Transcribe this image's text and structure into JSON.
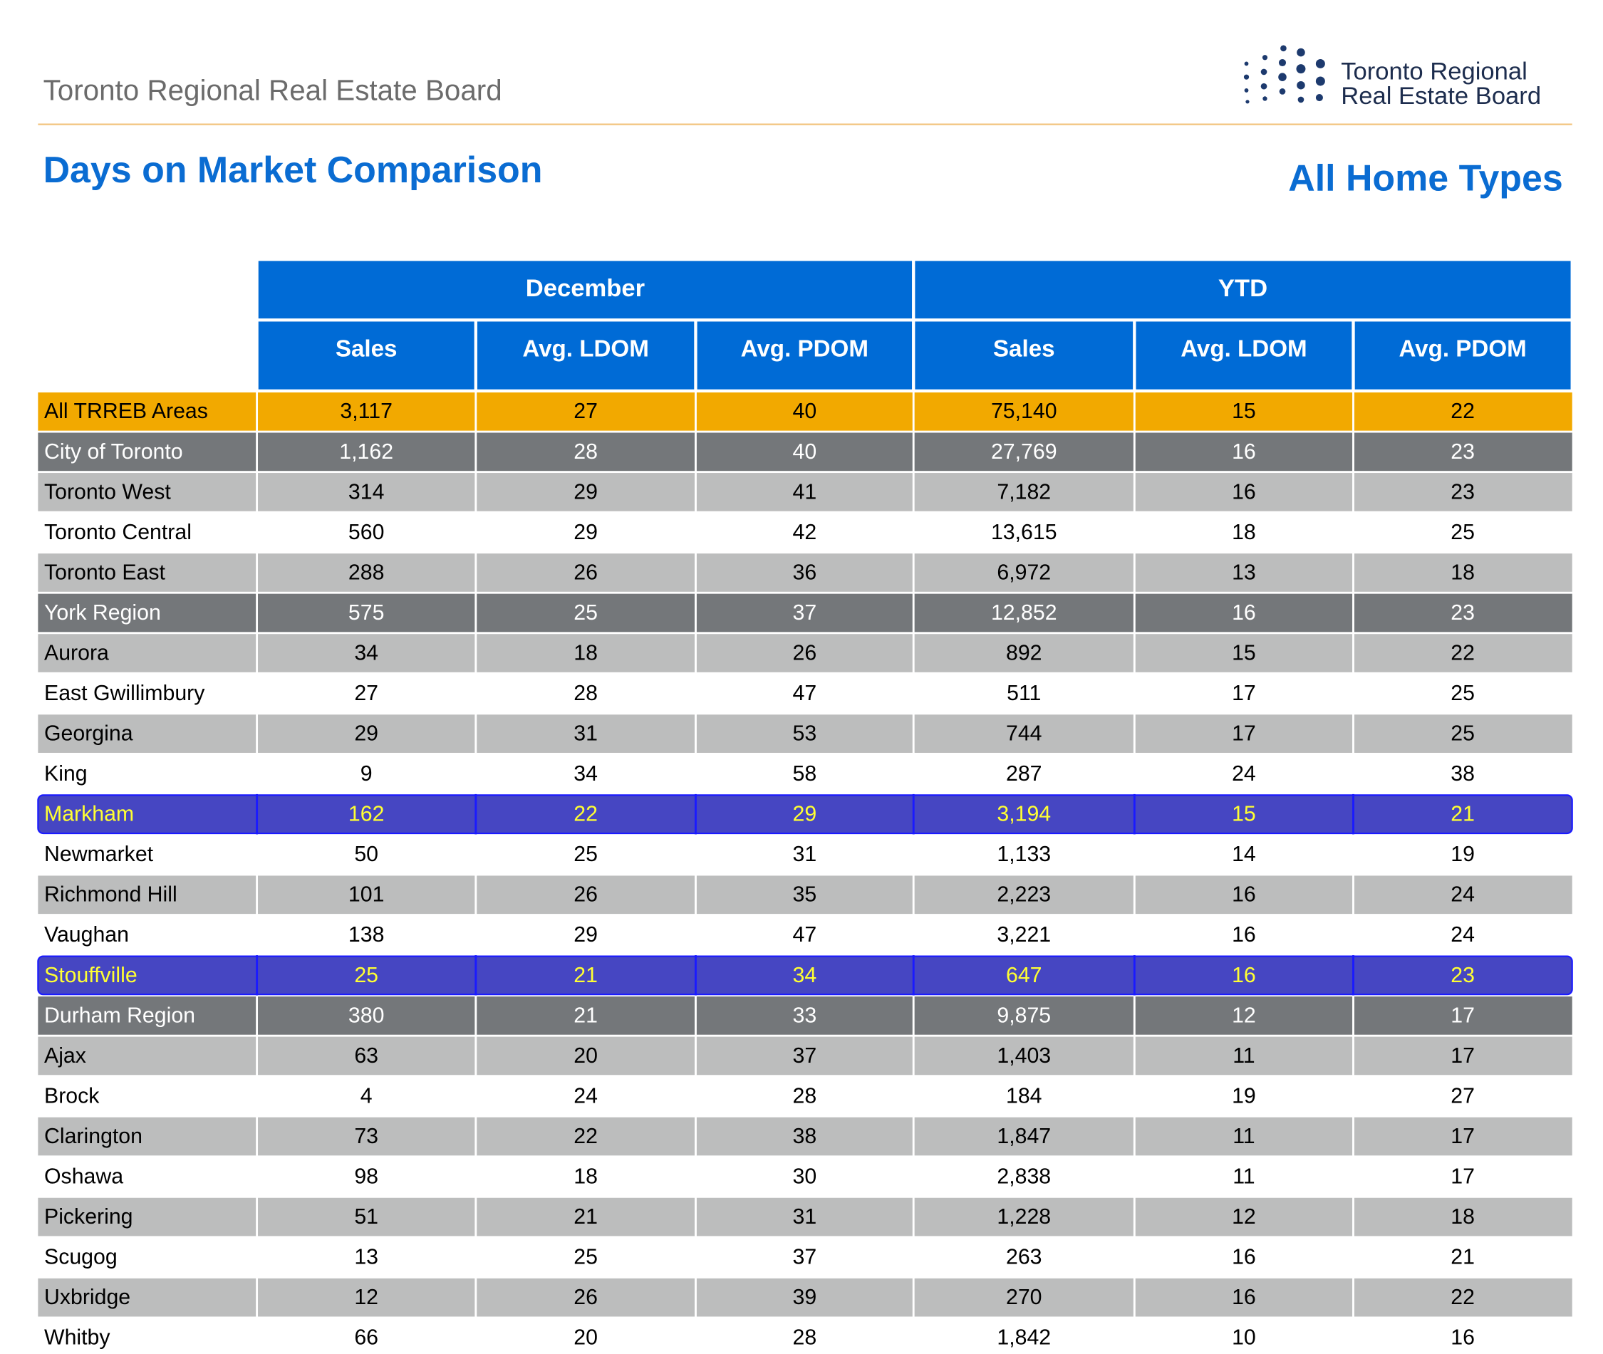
{
  "header": {
    "org": "Toronto Regional Real Estate Board",
    "logo_line1": "Toronto Regional",
    "logo_line2": "Real Estate Board",
    "title": "Days on Market Comparison",
    "subtitle": "All Home Types"
  },
  "table": {
    "groups": [
      "December",
      "YTD"
    ],
    "columns": [
      "Sales",
      "Avg. LDOM",
      "Avg. PDOM",
      "Sales",
      "Avg. LDOM",
      "Avg. PDOM"
    ],
    "rows": [
      [
        "All TRREB Areas",
        "3,117",
        "27",
        "40",
        "75,140",
        "15",
        "22"
      ],
      [
        "City of Toronto",
        "1,162",
        "28",
        "40",
        "27,769",
        "16",
        "23"
      ],
      [
        "Toronto West",
        "314",
        "29",
        "41",
        "7,182",
        "16",
        "23"
      ],
      [
        "Toronto Central",
        "560",
        "29",
        "42",
        "13,615",
        "18",
        "25"
      ],
      [
        "Toronto East",
        "288",
        "26",
        "36",
        "6,972",
        "13",
        "18"
      ],
      [
        "York Region",
        "575",
        "25",
        "37",
        "12,852",
        "16",
        "23"
      ],
      [
        "Aurora",
        "34",
        "18",
        "26",
        "892",
        "15",
        "22"
      ],
      [
        "East Gwillimbury",
        "27",
        "28",
        "47",
        "511",
        "17",
        "25"
      ],
      [
        "Georgina",
        "29",
        "31",
        "53",
        "744",
        "17",
        "25"
      ],
      [
        "King",
        "9",
        "34",
        "58",
        "287",
        "24",
        "38"
      ],
      [
        "Markham",
        "162",
        "22",
        "29",
        "3,194",
        "15",
        "21"
      ],
      [
        "Newmarket",
        "50",
        "25",
        "31",
        "1,133",
        "14",
        "19"
      ],
      [
        "Richmond Hill",
        "101",
        "26",
        "35",
        "2,223",
        "16",
        "24"
      ],
      [
        "Vaughan",
        "138",
        "29",
        "47",
        "3,221",
        "16",
        "24"
      ],
      [
        "Stouffville",
        "25",
        "21",
        "34",
        "647",
        "16",
        "23"
      ],
      [
        "Durham Region",
        "380",
        "21",
        "33",
        "9,875",
        "12",
        "17"
      ],
      [
        "Ajax",
        "63",
        "20",
        "37",
        "1,403",
        "11",
        "17"
      ],
      [
        "Brock",
        "4",
        "24",
        "28",
        "184",
        "19",
        "27"
      ],
      [
        "Clarington",
        "73",
        "22",
        "38",
        "1,847",
        "11",
        "17"
      ],
      [
        "Oshawa",
        "98",
        "18",
        "30",
        "2,838",
        "11",
        "17"
      ],
      [
        "Pickering",
        "51",
        "21",
        "31",
        "1,228",
        "12",
        "18"
      ],
      [
        "Scugog",
        "13",
        "25",
        "37",
        "263",
        "16",
        "21"
      ],
      [
        "Uxbridge",
        "12",
        "26",
        "39",
        "270",
        "16",
        "22"
      ],
      [
        "Whitby",
        "66",
        "20",
        "28",
        "1,842",
        "10",
        "16"
      ]
    ]
  }
}
